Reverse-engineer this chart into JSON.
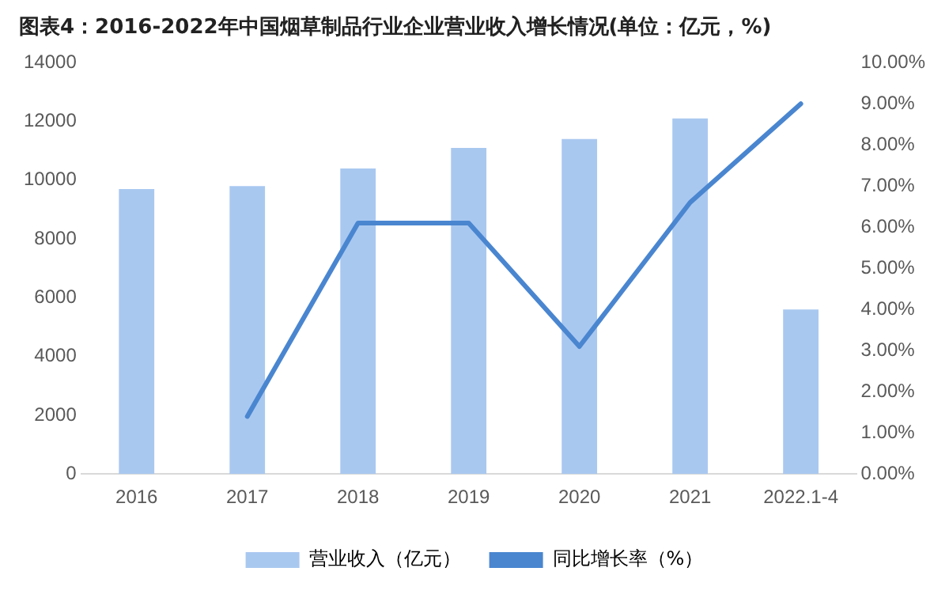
{
  "chart_data": {
    "type": "bar",
    "title": "图表4：2016-2022年中国烟草制品行业企业营业收入增长情况(单位：亿元，%)",
    "categories": [
      "2016",
      "2017",
      "2018",
      "2019",
      "2020",
      "2021",
      "2022.1-4"
    ],
    "series": [
      {
        "name": "营业收入（亿元）",
        "color": "#a9c8f0",
        "values": [
          9700,
          9800,
          10400,
          11100,
          11400,
          12100,
          5600
        ]
      },
      {
        "name": "同比增长率（%）",
        "type": "line",
        "axis": "y2",
        "color": "#4a86d0",
        "values": [
          null,
          1.4,
          6.1,
          6.1,
          3.1,
          6.6,
          9.0
        ]
      }
    ],
    "ylim": [
      0,
      14000
    ],
    "yticks": [
      0,
      2000,
      4000,
      6000,
      8000,
      10000,
      12000,
      14000
    ],
    "y2lim": [
      0,
      10
    ],
    "y2ticks": [
      {
        "value": 0,
        "label": "0.00%"
      },
      {
        "value": 1,
        "label": "1.00%"
      },
      {
        "value": 2,
        "label": "2.00%"
      },
      {
        "value": 3,
        "label": "3.00%"
      },
      {
        "value": 4,
        "label": "4.00%"
      },
      {
        "value": 5,
        "label": "5.00%"
      },
      {
        "value": 6,
        "label": "6.00%"
      },
      {
        "value": 7,
        "label": "7.00%"
      },
      {
        "value": 8,
        "label": "8.00%"
      },
      {
        "value": 9,
        "label": "9.00%"
      },
      {
        "value": 10,
        "label": "10.00%"
      }
    ],
    "grid": false,
    "legend": "bottom",
    "marker": "none",
    "line_style": "solid"
  }
}
